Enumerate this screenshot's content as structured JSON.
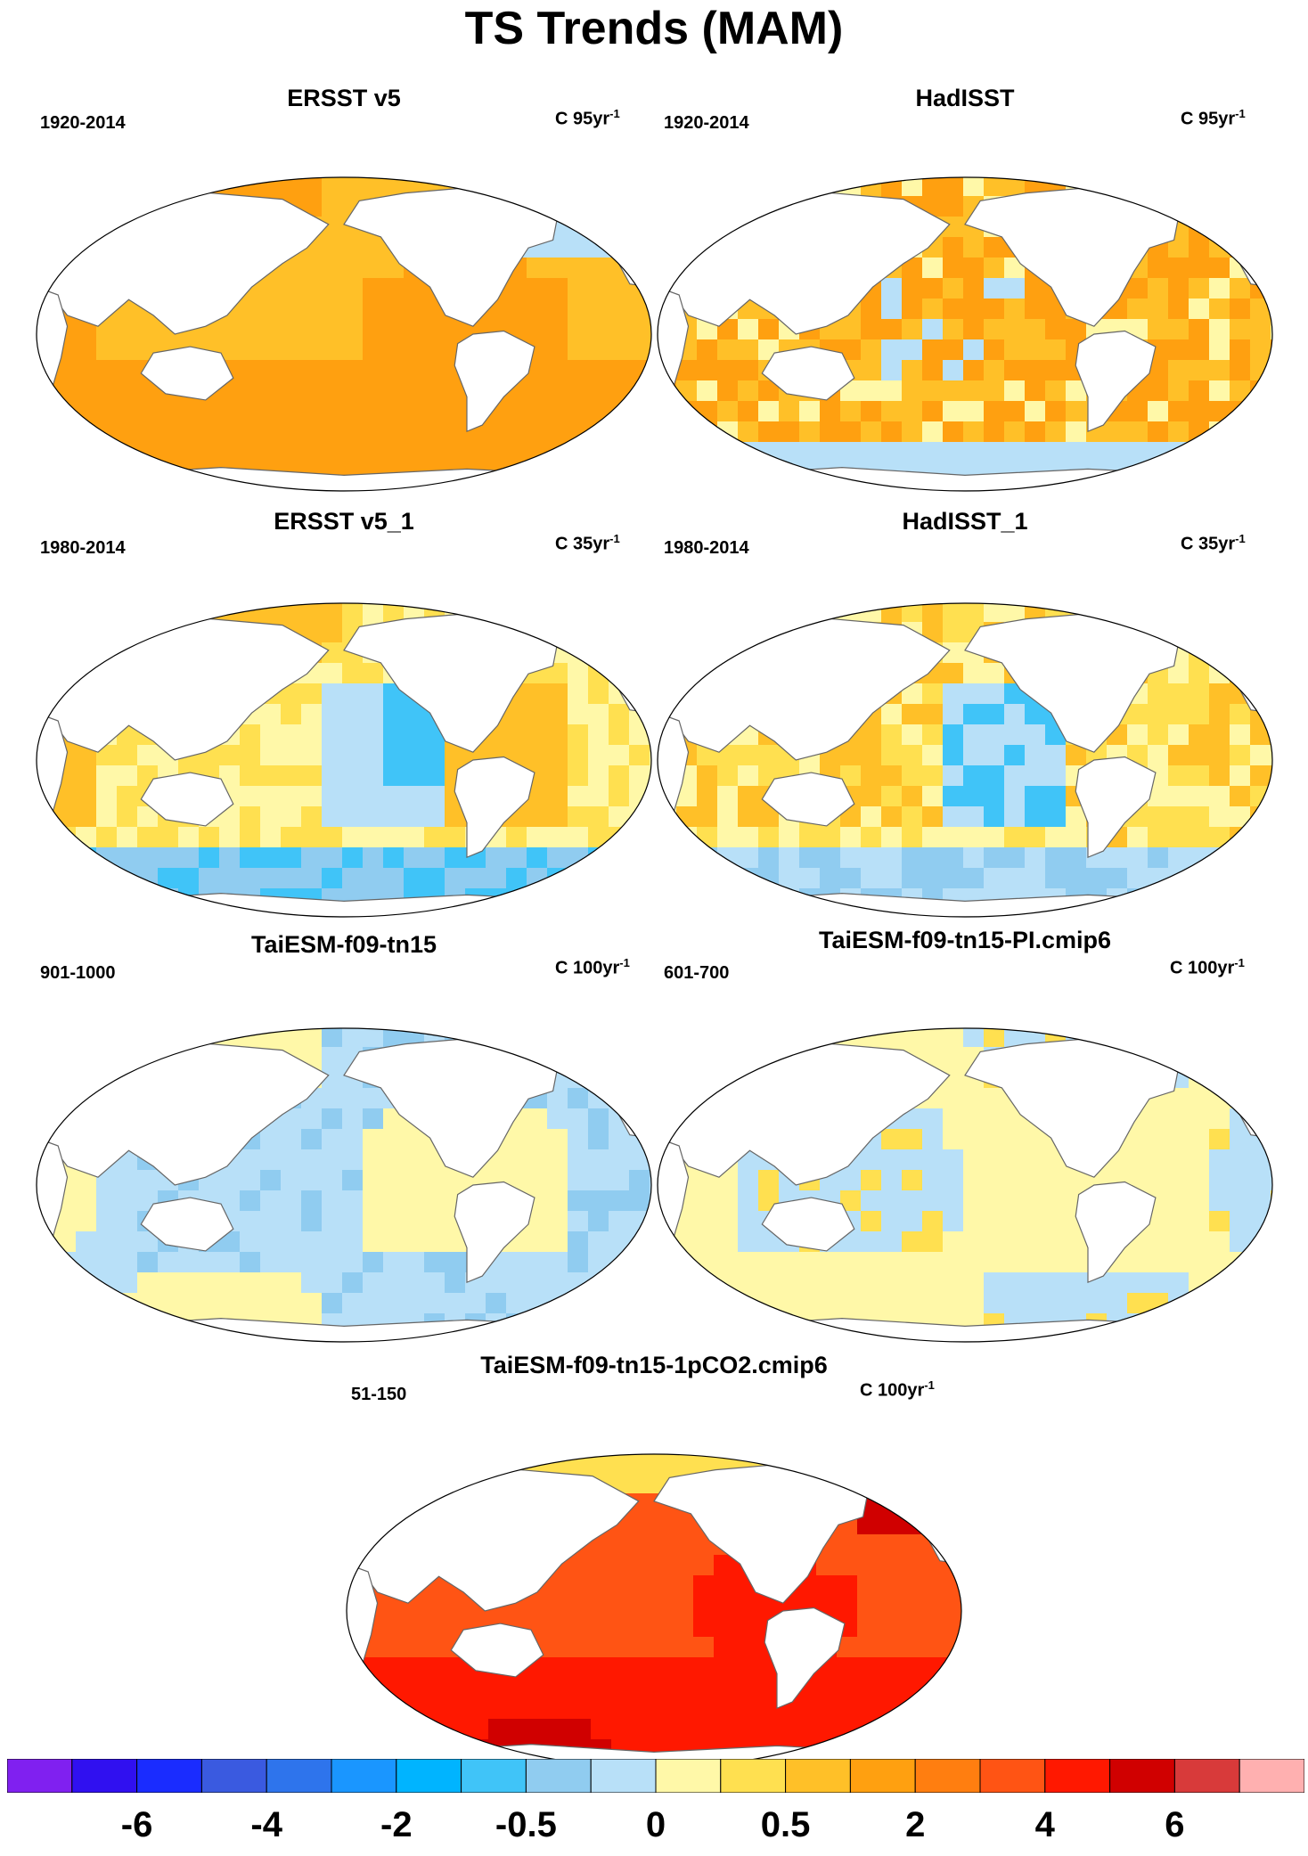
{
  "title": "TS Trends (MAM)",
  "panels": [
    {
      "id": "ersst",
      "title": "ERSST v5",
      "period": "1920-2014",
      "units": "C 95yr",
      "units_exp": "-1",
      "field": "warm"
    },
    {
      "id": "hadisst",
      "title": "HadISST",
      "period": "1920-2014",
      "units": "C 95yr",
      "units_exp": "-1",
      "field": "warm-noisy"
    },
    {
      "id": "ersst1",
      "title": "ERSST v5_1",
      "period": "1980-2014",
      "units": "C 35yr",
      "units_exp": "-1",
      "field": "lanina"
    },
    {
      "id": "hadisst1",
      "title": "HadISST_1",
      "period": "1980-2014",
      "units": "C 35yr",
      "units_exp": "-1",
      "field": "lanina-noisy"
    },
    {
      "id": "taiesm",
      "title": "TaiESM-f09-tn15",
      "period": "901-1000",
      "units": "C 100yr",
      "units_exp": "-1",
      "field": "weak"
    },
    {
      "id": "taiesm-pi",
      "title": "TaiESM-f09-tn15-PI.cmip6",
      "period": "601-700",
      "units": "C 100yr",
      "units_exp": "-1",
      "field": "weak-warm"
    },
    {
      "id": "taiesm-co2",
      "title": "TaiESM-f09-tn15-1pCO2.cmip6",
      "period": "51-150",
      "units": "C 100yr",
      "units_exp": "-1",
      "field": "hot"
    }
  ],
  "colorbar": {
    "colors": [
      "#8020f0",
      "#3010f0",
      "#1a2cff",
      "#3a5ae0",
      "#2e74ec",
      "#1a96ff",
      "#00b4ff",
      "#40c4f8",
      "#90ccf0",
      "#b8e0f8",
      "#fff8a8",
      "#ffe050",
      "#ffc028",
      "#ffa010",
      "#ff7e10",
      "#ff5414",
      "#ff1800",
      "#d00000",
      "#d83a3a",
      "#ffb0b0"
    ],
    "labels": [
      "-6",
      "-4",
      "-2",
      "-0.5",
      "0",
      "0.5",
      "2",
      "4",
      "6"
    ]
  },
  "colors": {
    "land": "#ffffff",
    "coast": "#666666",
    "ocean_default": "#ffc028"
  }
}
